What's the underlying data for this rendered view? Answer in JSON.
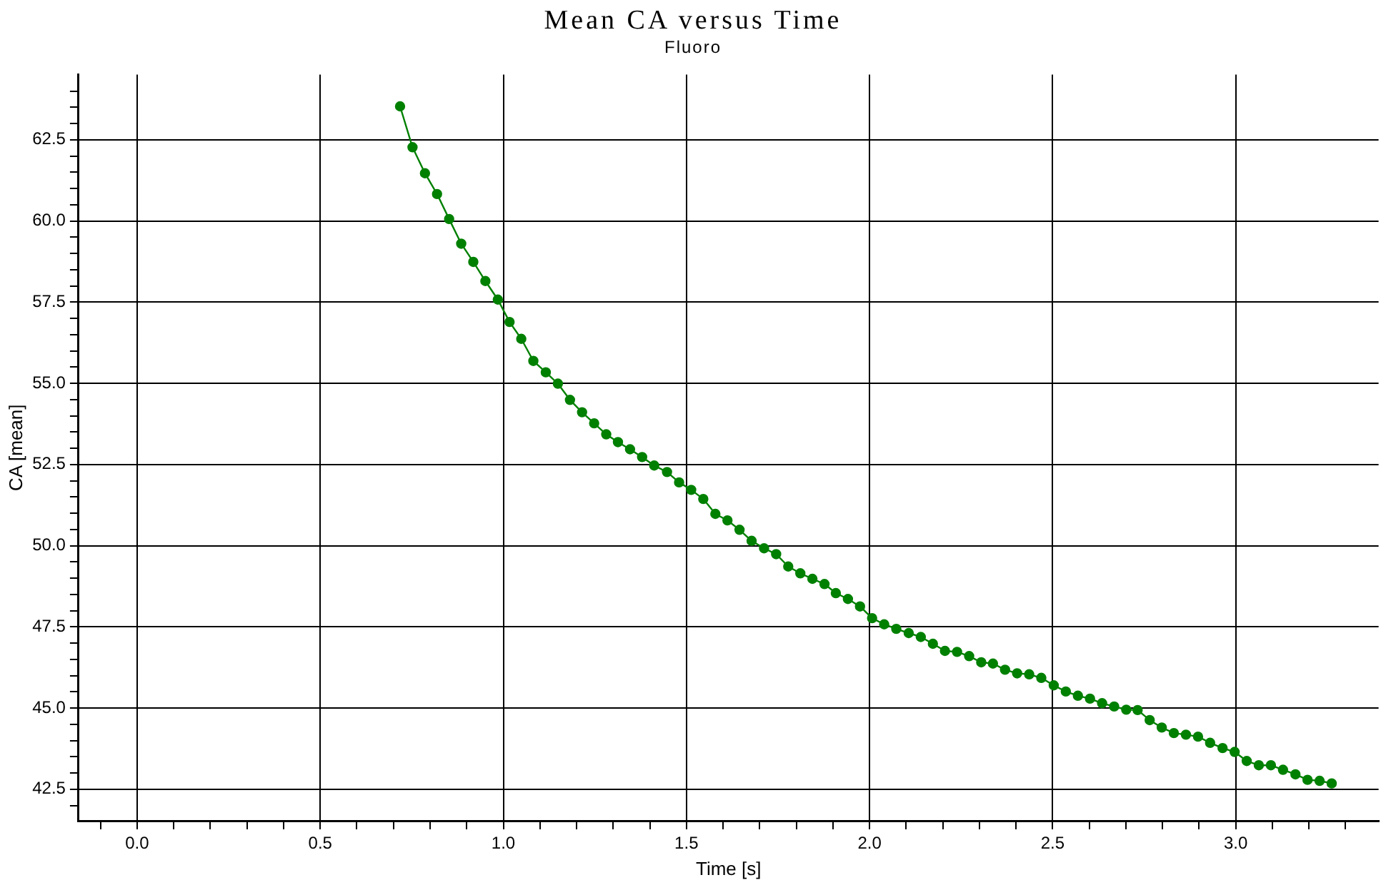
{
  "chart_data": {
    "type": "line",
    "title": "Mean CA versus Time",
    "subtitle": "Fluoro",
    "xlabel": "Time [s]",
    "ylabel": "CA [mean]",
    "xlim": [
      -0.16,
      3.39
    ],
    "ylim": [
      41.53,
      64.51
    ],
    "xticks": [
      {
        "value": -0.1,
        "label": null
      },
      {
        "value": 0,
        "label": "0.0"
      },
      {
        "value": 0.1,
        "label": null
      },
      {
        "value": 0.2,
        "label": null
      },
      {
        "value": 0.3,
        "label": null
      },
      {
        "value": 0.4,
        "label": null
      },
      0.5,
      {
        "value": 0.6,
        "label": null
      },
      {
        "value": 0.7,
        "label": null
      },
      {
        "value": 0.8,
        "label": null
      },
      {
        "value": 0.9,
        "label": null
      },
      {
        "value": 1,
        "label": "1.0"
      },
      {
        "value": 1.1,
        "label": null
      },
      {
        "value": 1.2,
        "label": null
      },
      {
        "value": 1.3,
        "label": null
      },
      {
        "value": 1.4,
        "label": null
      },
      1.5,
      {
        "value": 1.6,
        "label": null
      },
      {
        "value": 1.7,
        "label": null
      },
      {
        "value": 1.8,
        "label": null
      },
      {
        "value": 1.9,
        "label": null
      },
      {
        "value": 2,
        "label": "2.0"
      },
      {
        "value": 2.1,
        "label": null
      },
      {
        "value": 2.2,
        "label": null
      },
      {
        "value": 2.3,
        "label": null
      },
      {
        "value": 2.4,
        "label": null
      },
      2.5,
      {
        "value": 2.6,
        "label": null
      },
      {
        "value": 2.7,
        "label": null
      },
      {
        "value": 2.8,
        "label": null
      },
      {
        "value": 2.9,
        "label": null
      },
      {
        "value": 3,
        "label": "3.0"
      },
      {
        "value": 3.1,
        "label": null
      },
      {
        "value": 3.2,
        "label": null
      },
      {
        "value": 3.3,
        "label": null
      }
    ],
    "yticks": [
      {
        "value": 42.0,
        "label": null
      },
      42.5,
      {
        "value": 43.0,
        "label": null
      },
      {
        "value": 43.5,
        "label": null
      },
      {
        "value": 44.0,
        "label": null
      },
      {
        "value": 44.5,
        "label": null
      },
      {
        "value": 45,
        "label": "45.0"
      },
      {
        "value": 45.5,
        "label": null
      },
      {
        "value": 46.0,
        "label": null
      },
      {
        "value": 46.5,
        "label": null
      },
      {
        "value": 47.0,
        "label": null
      },
      47.5,
      {
        "value": 48.0,
        "label": null
      },
      {
        "value": 48.5,
        "label": null
      },
      {
        "value": 49.0,
        "label": null
      },
      {
        "value": 49.5,
        "label": null
      },
      {
        "value": 50,
        "label": "50.0"
      },
      {
        "value": 50.5,
        "label": null
      },
      {
        "value": 51.0,
        "label": null
      },
      {
        "value": 51.5,
        "label": null
      },
      {
        "value": 52.0,
        "label": null
      },
      52.5,
      {
        "value": 53.0,
        "label": null
      },
      {
        "value": 53.5,
        "label": null
      },
      {
        "value": 54.0,
        "label": null
      },
      {
        "value": 54.5,
        "label": null
      },
      {
        "value": 55,
        "label": "55.0"
      },
      {
        "value": 55.5,
        "label": null
      },
      {
        "value": 56.0,
        "label": null
      },
      {
        "value": 56.5,
        "label": null
      },
      {
        "value": 57.0,
        "label": null
      },
      57.5,
      {
        "value": 58.0,
        "label": null
      },
      {
        "value": 58.5,
        "label": null
      },
      {
        "value": 59.0,
        "label": null
      },
      {
        "value": 59.5,
        "label": null
      },
      {
        "value": 60,
        "label": "60.0"
      },
      {
        "value": 60.5,
        "label": null
      },
      {
        "value": 61.0,
        "label": null
      },
      {
        "value": 61.5,
        "label": null
      },
      {
        "value": 62.0,
        "label": null
      },
      62.5,
      {
        "value": 63.0,
        "label": null
      },
      {
        "value": 63.5,
        "label": null
      },
      {
        "value": 64.0,
        "label": null
      }
    ],
    "grid": true,
    "legend": false,
    "marker": "circle",
    "line_style": "solid",
    "series": [
      {
        "color": "#008000",
        "x": [
          0.718,
          0.752,
          0.786,
          0.819,
          0.852,
          0.885,
          0.918,
          0.951,
          0.985,
          1.017,
          1.049,
          1.082,
          1.116,
          1.149,
          1.182,
          1.215,
          1.248,
          1.281,
          1.313,
          1.346,
          1.379,
          1.412,
          1.447,
          1.48,
          1.513,
          1.546,
          1.579,
          1.612,
          1.645,
          1.678,
          1.712,
          1.745,
          1.778,
          1.811,
          1.844,
          1.877,
          1.908,
          1.941,
          1.974,
          2.007,
          2.04,
          2.073,
          2.107,
          2.14,
          2.173,
          2.206,
          2.239,
          2.272,
          2.305,
          2.337,
          2.37,
          2.403,
          2.436,
          2.469,
          2.503,
          2.536,
          2.569,
          2.602,
          2.635,
          2.668,
          2.701,
          2.732,
          2.765,
          2.798,
          2.831,
          2.864,
          2.897,
          2.93,
          2.964,
          2.997,
          3.03,
          3.063,
          3.096,
          3.129,
          3.163,
          3.196,
          3.229,
          3.262
        ],
        "values": [
          63.53,
          62.27,
          61.47,
          60.83,
          60.06,
          59.3,
          58.74,
          58.15,
          57.58,
          56.89,
          56.37,
          55.69,
          55.34,
          54.99,
          54.49,
          54.11,
          53.77,
          53.43,
          53.19,
          52.97,
          52.73,
          52.47,
          52.27,
          51.95,
          51.72,
          51.44,
          50.98,
          50.78,
          50.49,
          50.15,
          49.92,
          49.74,
          49.36,
          49.15,
          48.98,
          48.82,
          48.54,
          48.36,
          48.13,
          47.77,
          47.58,
          47.44,
          47.31,
          47.19,
          46.98,
          46.76,
          46.73,
          46.6,
          46.41,
          46.37,
          46.18,
          46.07,
          46.04,
          45.93,
          45.7,
          45.51,
          45.38,
          45.29,
          45.15,
          45.05,
          44.95,
          44.94,
          44.63,
          44.4,
          44.23,
          44.18,
          44.12,
          43.93,
          43.77,
          43.65,
          43.37,
          43.24,
          43.24,
          43.1,
          42.96,
          42.79,
          42.76,
          42.68
        ]
      }
    ]
  }
}
